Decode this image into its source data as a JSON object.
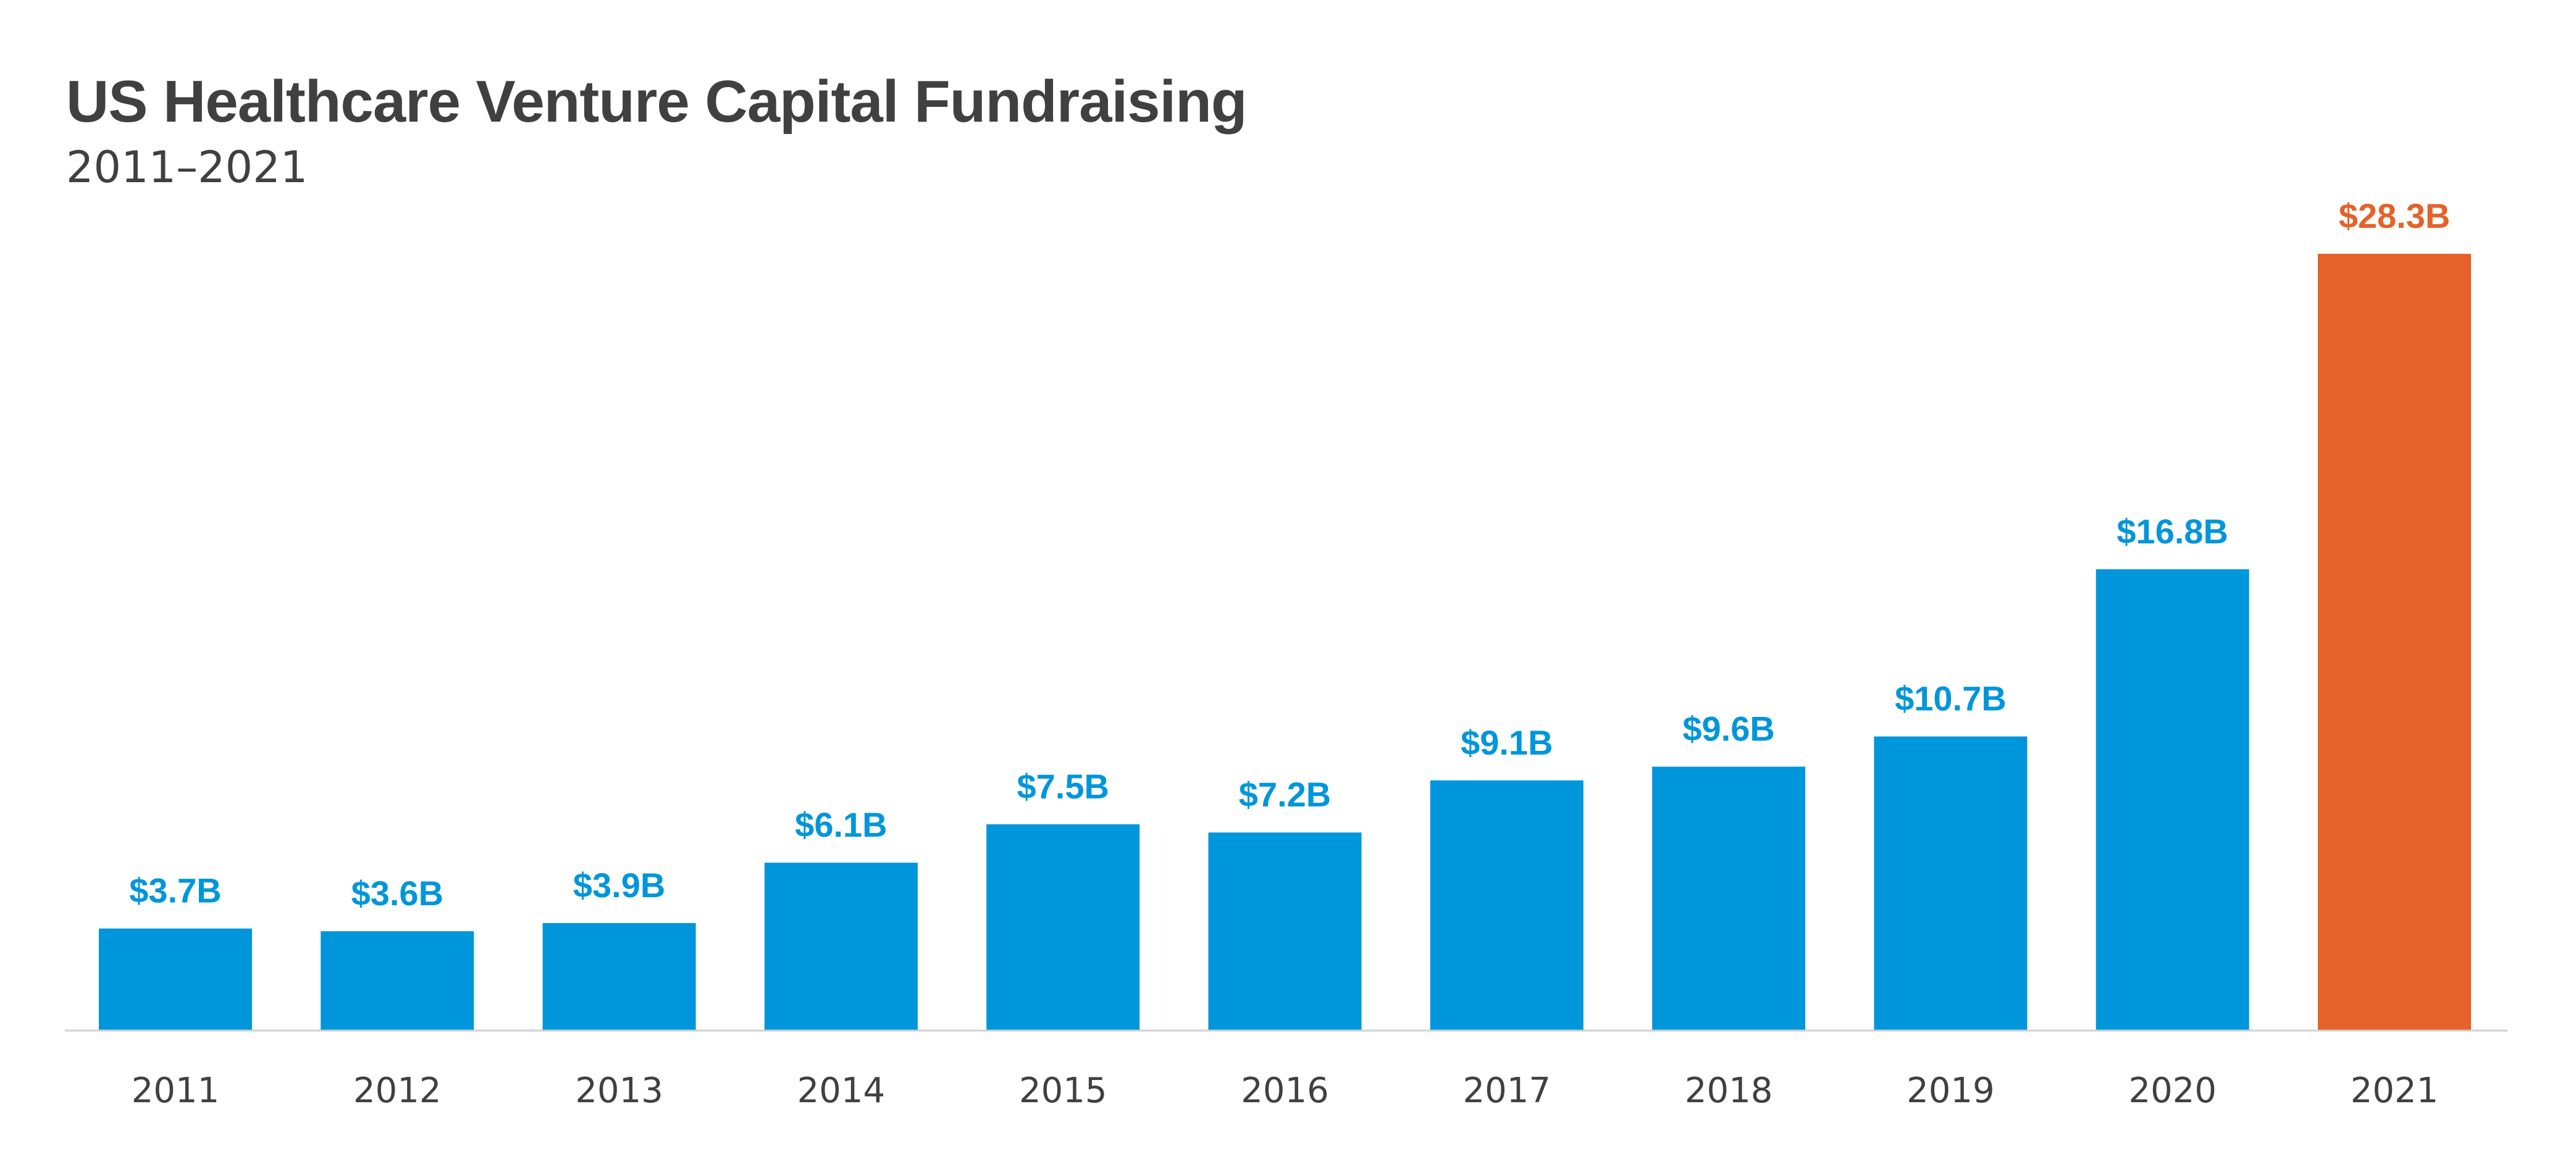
{
  "chart_data": {
    "type": "bar",
    "title": "US Healthcare Venture Capital Fundraising",
    "subtitle": "2011–2021",
    "categories": [
      "2011",
      "2012",
      "2013",
      "2014",
      "2015",
      "2016",
      "2017",
      "2018",
      "2019",
      "2020",
      "2021"
    ],
    "values": [
      3.7,
      3.6,
      3.9,
      6.1,
      7.5,
      7.2,
      9.1,
      9.6,
      10.7,
      16.8,
      28.3
    ],
    "data_labels": [
      "$3.7B",
      "$3.6B",
      "$3.9B",
      "$6.1B",
      "$7.5B",
      "$7.2B",
      "$9.1B",
      "$9.6B",
      "$10.7B",
      "$16.8B",
      "$28.3B"
    ],
    "xlabel": "",
    "ylabel": "",
    "ylim": [
      0,
      28.3
    ],
    "grid": false,
    "legend": "none",
    "colors": {
      "default": "#0096DB",
      "highlight": "#E5622A",
      "highlight_category": "2021",
      "axis": "#D0D0D0",
      "tick_text": "#404040"
    }
  }
}
